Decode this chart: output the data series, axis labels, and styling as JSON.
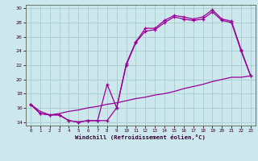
{
  "title": "",
  "xlabel": "Windchill (Refroidissement éolien,°C)",
  "bg_color": "#cce8ec",
  "grid_color": "#aacccc",
  "line_color": "#990099",
  "xlim": [
    -0.5,
    23.5
  ],
  "ylim": [
    13.5,
    30.5
  ],
  "yticks": [
    14,
    16,
    18,
    20,
    22,
    24,
    26,
    28,
    30
  ],
  "xticks": [
    0,
    1,
    2,
    3,
    4,
    5,
    6,
    7,
    8,
    9,
    10,
    11,
    12,
    13,
    14,
    15,
    16,
    17,
    18,
    19,
    20,
    21,
    22,
    23
  ],
  "line1_x": [
    0,
    1,
    2,
    3,
    4,
    5,
    6,
    7,
    8,
    9,
    10,
    11,
    12,
    13,
    14,
    15,
    16,
    17,
    18,
    19,
    20,
    21,
    22,
    23
  ],
  "line1_y": [
    16.5,
    15.2,
    15.0,
    15.0,
    14.2,
    14.0,
    14.2,
    14.2,
    19.3,
    16.0,
    22.2,
    25.3,
    27.2,
    27.2,
    28.3,
    29.0,
    28.8,
    28.5,
    28.8,
    29.8,
    28.5,
    28.2,
    24.2,
    20.5
  ],
  "line2_x": [
    0,
    1,
    2,
    3,
    4,
    5,
    6,
    7,
    8,
    9,
    10,
    11,
    12,
    13,
    14,
    15,
    16,
    17,
    18,
    19,
    20,
    21,
    22,
    23
  ],
  "line2_y": [
    16.5,
    15.2,
    15.0,
    15.0,
    14.2,
    14.0,
    14.2,
    14.2,
    14.2,
    16.0,
    22.0,
    25.2,
    26.8,
    27.0,
    28.0,
    28.8,
    28.5,
    28.3,
    28.5,
    29.5,
    28.3,
    28.0,
    24.0,
    20.5
  ],
  "line3_x": [
    0,
    1,
    2,
    3,
    4,
    5,
    6,
    7,
    8,
    9,
    10,
    11,
    12,
    13,
    14,
    15,
    16,
    17,
    18,
    19,
    20,
    21,
    22,
    23
  ],
  "line3_y": [
    16.5,
    15.5,
    15.0,
    15.2,
    15.5,
    15.7,
    16.0,
    16.2,
    16.5,
    16.7,
    17.0,
    17.3,
    17.5,
    17.8,
    18.0,
    18.3,
    18.7,
    19.0,
    19.3,
    19.7,
    20.0,
    20.3,
    20.3,
    20.5
  ]
}
